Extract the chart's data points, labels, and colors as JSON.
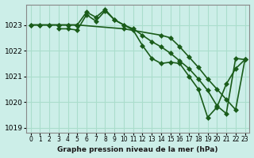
{
  "title": "Graphe pression niveau de la mer (hPa)",
  "background_color": "#cceee8",
  "grid_color": "#aaddcc",
  "line_color": "#1a5c1a",
  "marker_color": "#1a5c1a",
  "xlim": [
    -0.5,
    23.5
  ],
  "ylim": [
    1018.8,
    1023.8
  ],
  "yticks": [
    1019,
    1020,
    1021,
    1022,
    1023
  ],
  "xtick_labels": [
    "0",
    "1",
    "2",
    "3",
    "4",
    "5",
    "6",
    "7",
    "8",
    "9",
    "10",
    "11",
    "12",
    "13",
    "14",
    "15",
    "16",
    "17",
    "18",
    "19",
    "20",
    "21",
    "22",
    "23"
  ],
  "series": [
    {
      "x": [
        0,
        1,
        2,
        3,
        4,
        5,
        6,
        7,
        8,
        9,
        10,
        11,
        12,
        13,
        14,
        15,
        16,
        17,
        18,
        19,
        20,
        21,
        22,
        23
      ],
      "y": [
        1023.0,
        1023.0,
        1023.0,
        1023.0,
        1023.0,
        1023.0,
        1023.5,
        1023.3,
        1023.6,
        1023.2,
        1023.0,
        1022.85,
        1022.6,
        1022.35,
        1022.15,
        1021.9,
        1021.6,
        1021.3,
        1020.9,
        1020.45,
        1019.85,
        1019.55,
        1021.7,
        1021.65
      ],
      "marker": "D",
      "marker_size": 3,
      "linewidth": 1.2
    },
    {
      "x": [
        0,
        1,
        2,
        3,
        4,
        5,
        10,
        14,
        15,
        16,
        17,
        18,
        19,
        20,
        21,
        22,
        23
      ],
      "y": [
        1023.0,
        1023.0,
        1023.0,
        1023.0,
        1023.0,
        1023.0,
        1022.85,
        1022.6,
        1022.5,
        1022.15,
        1021.75,
        1021.35,
        1020.9,
        1020.5,
        1020.1,
        1019.7,
        1021.65
      ],
      "marker": "D",
      "marker_size": 3,
      "linewidth": 1.2
    },
    {
      "x": [
        3,
        4,
        5,
        6,
        7,
        8,
        9,
        10,
        11,
        12,
        13,
        14,
        15,
        16,
        17,
        18,
        19,
        20,
        21,
        22,
        23
      ],
      "y": [
        1022.85,
        1022.85,
        1022.8,
        1023.4,
        1023.15,
        1023.55,
        1023.2,
        1023.0,
        1022.8,
        1022.2,
        1021.7,
        1021.5,
        1021.55,
        1021.5,
        1021.0,
        1020.5,
        1019.4,
        1019.8,
        1020.7,
        1021.3,
        1021.65
      ],
      "marker": "D",
      "marker_size": 3,
      "linewidth": 1.2
    }
  ]
}
